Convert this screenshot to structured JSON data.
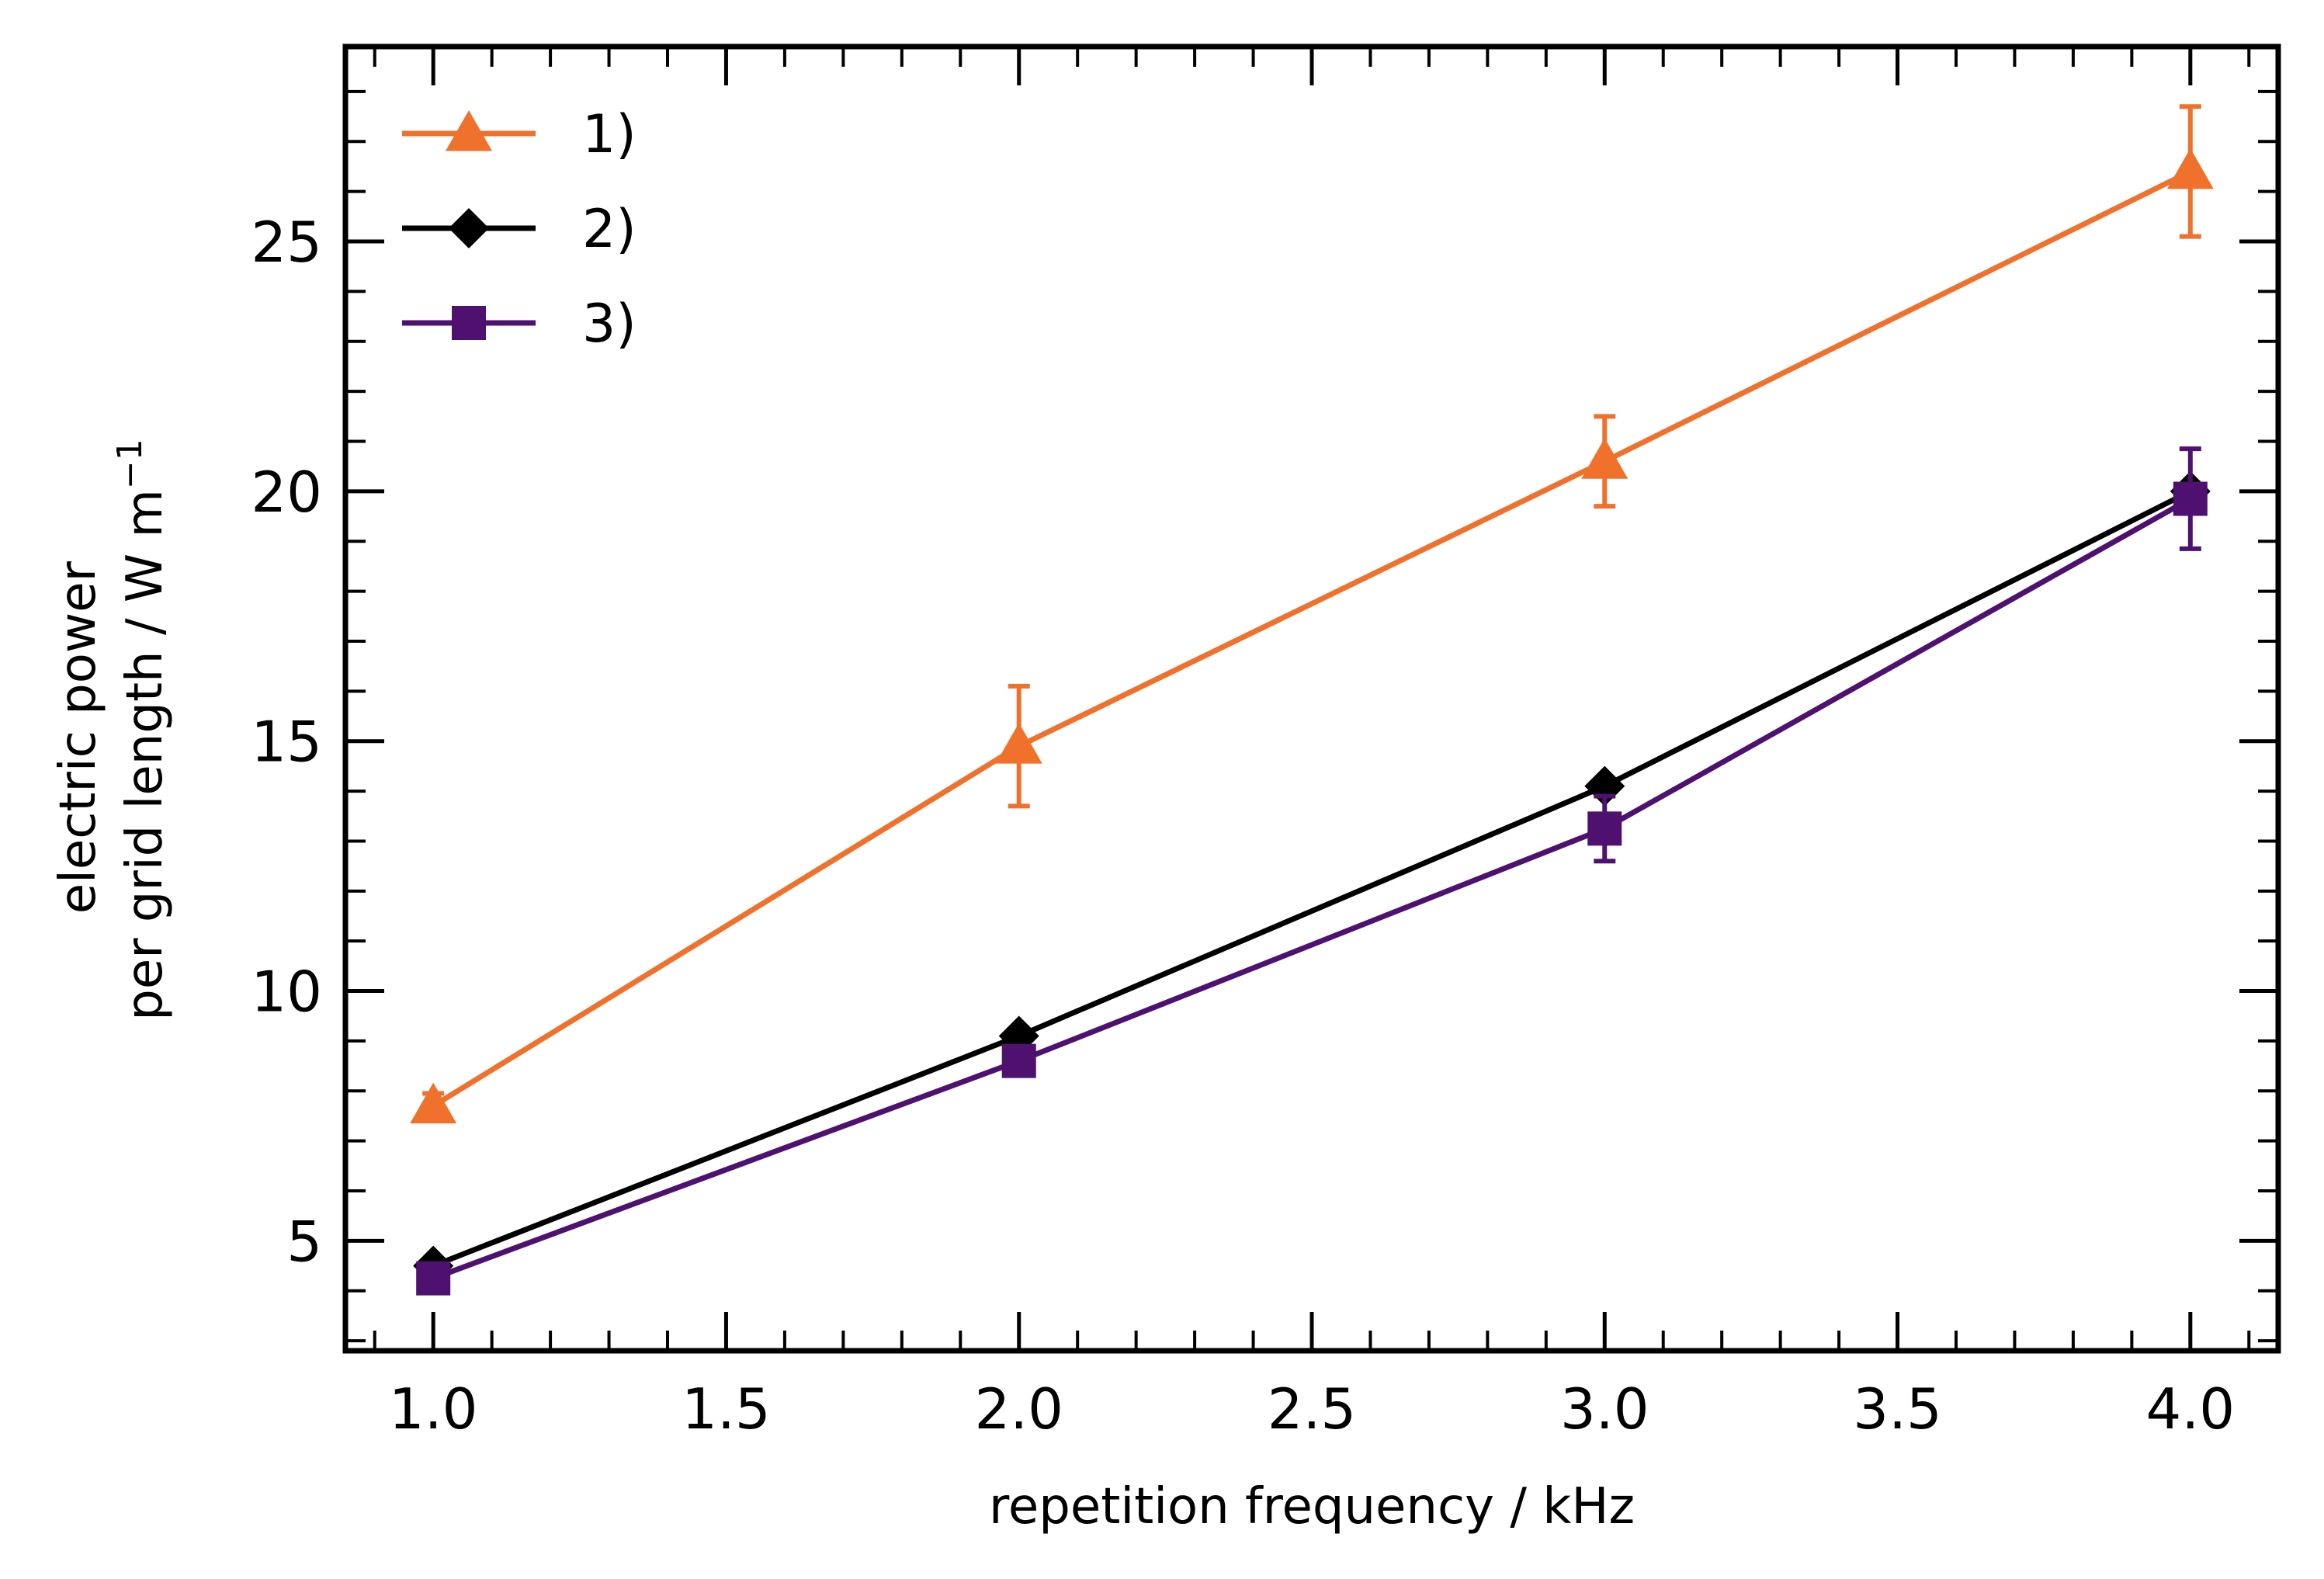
{
  "chart_data": {
    "type": "line",
    "title": "",
    "xlabel": "repetition frequency / kHz",
    "ylabel_line1": "electric power",
    "ylabel_line2": "per grid length / W m",
    "ylabel_superscript": "−1",
    "xlim": [
      0.85,
      4.15
    ],
    "ylim": [
      2.8,
      28.9
    ],
    "xticks": [
      1.0,
      1.5,
      2.0,
      2.5,
      3.0,
      3.5,
      4.0
    ],
    "xtick_labels": [
      "1.0",
      "1.5",
      "2.0",
      "2.5",
      "3.0",
      "3.5",
      "4.0"
    ],
    "yticks": [
      5,
      10,
      15,
      20,
      25
    ],
    "ytick_labels": [
      "5",
      "10",
      "15",
      "20",
      "25"
    ],
    "x_minor_step": 0.1,
    "y_minor_step": 1,
    "grid": false,
    "legend_position": "upper-left",
    "x": [
      1.0,
      2.0,
      3.0,
      4.0
    ],
    "series": [
      {
        "name": "1)",
        "marker": "triangle",
        "color": "#f0712c",
        "values": [
          7.7,
          14.9,
          20.6,
          26.4
        ],
        "errors": [
          0.25,
          1.2,
          0.9,
          1.3
        ]
      },
      {
        "name": "2)",
        "marker": "diamond",
        "color": "#000000",
        "values": [
          4.5,
          9.1,
          14.1,
          20.0
        ],
        "errors": [
          0.0,
          0.0,
          0.0,
          0.0
        ]
      },
      {
        "name": "3)",
        "marker": "square",
        "color": "#4e1170",
        "values": [
          4.25,
          8.6,
          13.25,
          19.85
        ],
        "errors": [
          0.1,
          0.25,
          0.65,
          1.0
        ]
      }
    ]
  }
}
